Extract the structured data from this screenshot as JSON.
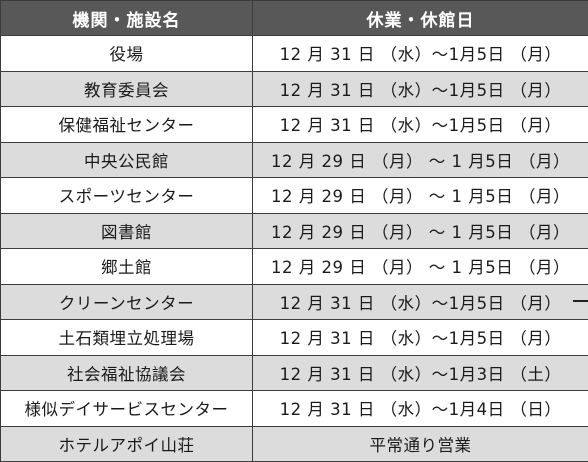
{
  "table": {
    "header": {
      "facility": "機関・施設名",
      "dates": "休業・休館日"
    },
    "rows": [
      {
        "facility": "役場",
        "dates": "12 月 31 日 （水）～1月5日 （月）"
      },
      {
        "facility": "教育委員会",
        "dates": "12 月 31 日 （水）～1月5日 （月）"
      },
      {
        "facility": "保健福祉センター",
        "dates": "12 月 31 日 （水）～1月5日 （月）"
      },
      {
        "facility": "中央公民館",
        "dates": "12 月 29 日 （月） ～ 1 月5日 （月）"
      },
      {
        "facility": "スポーツセンター",
        "dates": "12 月 29 日 （月） ～ 1 月5日 （月）"
      },
      {
        "facility": "図書館",
        "dates": "12 月 29 日 （月） ～ 1 月5日 （月）"
      },
      {
        "facility": "郷土館",
        "dates": "12 月 29 日 （月） ～ 1 月5日 （月）"
      },
      {
        "facility": "クリーンセンター",
        "dates": "12 月 31 日 （水）～1月5日 （月）"
      },
      {
        "facility": "土石類埋立処理場",
        "dates": "12 月 31 日 （水）～1月5日 （月）"
      },
      {
        "facility": "社会福祉協議会",
        "dates": "12 月 31 日 （水）～1月3日 （土）"
      },
      {
        "facility": "様似デイサービスセンター",
        "dates": "12 月 31 日 （水）～1月4日 （日）"
      },
      {
        "facility": "ホテルアポイ山荘",
        "dates": "平常通り営業"
      }
    ]
  }
}
